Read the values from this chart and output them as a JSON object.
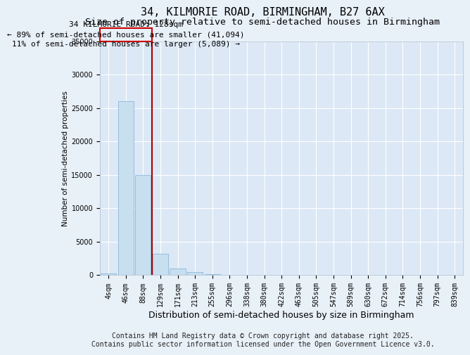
{
  "title": "34, KILMORIE ROAD, BIRMINGHAM, B27 6AX",
  "subtitle": "Size of property relative to semi-detached houses in Birmingham",
  "xlabel": "Distribution of semi-detached houses by size in Birmingham",
  "ylabel": "Number of semi-detached properties",
  "bin_labels": [
    "4sqm",
    "46sqm",
    "88sqm",
    "129sqm",
    "171sqm",
    "213sqm",
    "255sqm",
    "296sqm",
    "338sqm",
    "380sqm",
    "422sqm",
    "463sqm",
    "505sqm",
    "547sqm",
    "589sqm",
    "630sqm",
    "672sqm",
    "714sqm",
    "756sqm",
    "797sqm",
    "839sqm"
  ],
  "bar_values": [
    300,
    26000,
    15000,
    3200,
    1000,
    500,
    200,
    80,
    40,
    20,
    10,
    5,
    3,
    2,
    1,
    1,
    1,
    0,
    0,
    0,
    0
  ],
  "bar_color": "#c8dff0",
  "bar_edge_color": "#7bafd4",
  "ylim": [
    0,
    35000
  ],
  "yticks": [
    0,
    5000,
    10000,
    15000,
    20000,
    25000,
    30000,
    35000
  ],
  "vline_index": 2,
  "vline_color": "#aa0000",
  "annotation_title": "34 KILMORIE ROAD: 128sqm",
  "annotation_line2": "← 89% of semi-detached houses are smaller (41,094)",
  "annotation_line3": "11% of semi-detached houses are larger (5,089) →",
  "footer1": "Contains HM Land Registry data © Crown copyright and database right 2025.",
  "footer2": "Contains public sector information licensed under the Open Government Licence v3.0.",
  "background_color": "#e8f0f8",
  "plot_bg_color": "#dce8f5",
  "grid_color": "#ffffff",
  "ann_box_color": "#cc0000",
  "title_fontsize": 11,
  "subtitle_fontsize": 9.5,
  "tick_fontsize": 7,
  "ylabel_fontsize": 7.5,
  "xlabel_fontsize": 9,
  "annotation_fontsize": 8,
  "footer_fontsize": 7
}
